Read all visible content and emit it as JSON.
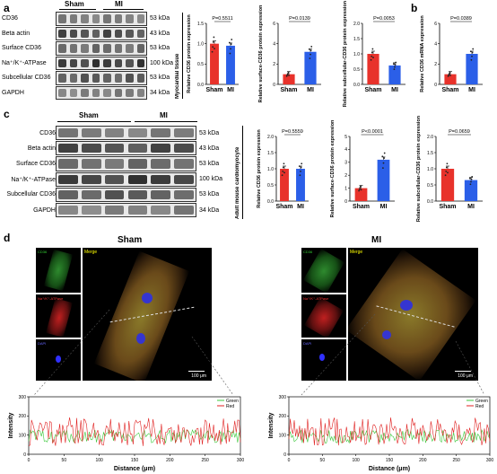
{
  "panels": {
    "a": "a",
    "b": "b",
    "c": "c",
    "d": "d"
  },
  "panel_a": {
    "groups": [
      "Sham",
      "MI"
    ],
    "side_label": "Myocardial tissue",
    "rows": [
      {
        "name": "CD36",
        "kda": "53 kDa"
      },
      {
        "name": "Beta actin",
        "kda": "43 kDa"
      },
      {
        "name": "Surface CD36",
        "kda": "53 kDa"
      },
      {
        "name": "Na⁺/K⁺-ATPase",
        "kda": "100 kDa"
      },
      {
        "name": "Subcellular CD36",
        "kda": "53 kDa"
      },
      {
        "name": "GAPDH",
        "kda": "34 kDa"
      }
    ]
  },
  "panel_c": {
    "groups": [
      "Sham",
      "MI"
    ],
    "side_label": "Adult mouse cardiomyocyte",
    "rows": [
      {
        "name": "CD36",
        "kda": "53 kDa"
      },
      {
        "name": "Beta actin",
        "kda": "43 kDa"
      },
      {
        "name": "Surface CD36",
        "kda": "53 kDa"
      },
      {
        "name": "Na⁺/K⁺-ATPase",
        "kda": "100 kDa"
      },
      {
        "name": "Subcellular CD36",
        "kda": "53 kDa"
      },
      {
        "name": "GAPDH",
        "kda": "34 kDa"
      }
    ]
  },
  "chart_data": [
    {
      "id": "a1",
      "type": "bar",
      "categories": [
        "Sham",
        "MI"
      ],
      "values": [
        1.0,
        0.95
      ],
      "ylabel": "Relative CD36 protein expression",
      "ylim": [
        0,
        1.5
      ],
      "yticks": [
        "0.0",
        "0.5",
        "1.0",
        "1.5"
      ],
      "pvalue": "P=0.5511",
      "colors": [
        "#e8322b",
        "#2b5fe8"
      ]
    },
    {
      "id": "a2",
      "type": "bar",
      "categories": [
        "Sham",
        "MI"
      ],
      "values": [
        1.0,
        3.2
      ],
      "ylabel": "Relative surface-CD36 protein expression",
      "ylim": [
        0,
        6
      ],
      "yticks": [
        "0",
        "2",
        "4",
        "6"
      ],
      "pvalue": "P=0.0139",
      "colors": [
        "#e8322b",
        "#2b5fe8"
      ]
    },
    {
      "id": "a3",
      "type": "bar",
      "categories": [
        "Sham",
        "MI"
      ],
      "values": [
        1.0,
        0.62
      ],
      "ylabel": "Relative subcellular-CD36 protein expression",
      "ylim": [
        0,
        2.0
      ],
      "yticks": [
        "0.0",
        "0.5",
        "1.0",
        "1.5",
        "2.0"
      ],
      "pvalue": "P=0.0053",
      "colors": [
        "#e8322b",
        "#2b5fe8"
      ]
    },
    {
      "id": "b1",
      "type": "bar",
      "categories": [
        "Sham",
        "MI"
      ],
      "values": [
        1.0,
        3.0
      ],
      "ylabel": "Relative CD36 mRNA expression",
      "ylim": [
        0,
        6
      ],
      "yticks": [
        "0",
        "2",
        "4",
        "6"
      ],
      "pvalue": "P=0.0389",
      "colors": [
        "#e8322b",
        "#2b5fe8"
      ]
    },
    {
      "id": "c1",
      "type": "bar",
      "categories": [
        "Sham",
        "MI"
      ],
      "values": [
        1.0,
        1.0
      ],
      "ylabel": "Relative CD36 protein expression",
      "ylim": [
        0,
        2.0
      ],
      "yticks": [
        "0.0",
        "0.5",
        "1.0",
        "1.5",
        "2.0"
      ],
      "pvalue": "P=0.5559",
      "colors": [
        "#e8322b",
        "#2b5fe8"
      ]
    },
    {
      "id": "c2",
      "type": "bar",
      "categories": [
        "Sham",
        "MI"
      ],
      "values": [
        1.0,
        3.2
      ],
      "ylabel": "Relative surface-CD36 protein expression",
      "ylim": [
        0,
        5
      ],
      "yticks": [
        "0",
        "1",
        "2",
        "3",
        "4",
        "5"
      ],
      "pvalue": "P<0.0001",
      "colors": [
        "#e8322b",
        "#2b5fe8"
      ]
    },
    {
      "id": "c3",
      "type": "bar",
      "categories": [
        "Sham",
        "MI"
      ],
      "values": [
        1.0,
        0.65
      ],
      "ylabel": "Relative subcellular-CD36 protein expression",
      "ylim": [
        0,
        2.0
      ],
      "yticks": [
        "0.0",
        "0.5",
        "1.0",
        "1.5",
        "2.0"
      ],
      "pvalue": "P=0.0659",
      "colors": [
        "#e8322b",
        "#2b5fe8"
      ]
    },
    {
      "id": "d1",
      "type": "line",
      "title": "Sham",
      "xlabel": "Distance (μm)",
      "ylabel": "Intensity",
      "xlim": [
        0,
        300
      ],
      "ylim": [
        0,
        300
      ],
      "xticks": [
        "0",
        "50",
        "100",
        "150",
        "200",
        "250",
        "300"
      ],
      "yticks": [
        "0",
        "100",
        "200",
        "300"
      ],
      "series": [
        {
          "name": "Green",
          "color": "#3cc83c"
        },
        {
          "name": "Red",
          "color": "#e02020"
        }
      ]
    },
    {
      "id": "d2",
      "type": "line",
      "title": "MI",
      "xlabel": "Distance (μm)",
      "ylabel": "Intensity",
      "xlim": [
        0,
        300
      ],
      "ylim": [
        0,
        300
      ],
      "xticks": [
        "0",
        "50",
        "100",
        "150",
        "200",
        "250",
        "300"
      ],
      "yticks": [
        "0",
        "100",
        "200",
        "300"
      ],
      "series": [
        {
          "name": "Green",
          "color": "#3cc83c"
        },
        {
          "name": "Red",
          "color": "#e02020"
        }
      ]
    }
  ],
  "panel_d": {
    "sham_title": "Sham",
    "mi_title": "MI",
    "merge": "Merge",
    "scale": "100 μm",
    "ch_green": "CD36",
    "ch_red": "Na⁺/K⁺-ATPase",
    "ch_blue": "DAPI"
  }
}
